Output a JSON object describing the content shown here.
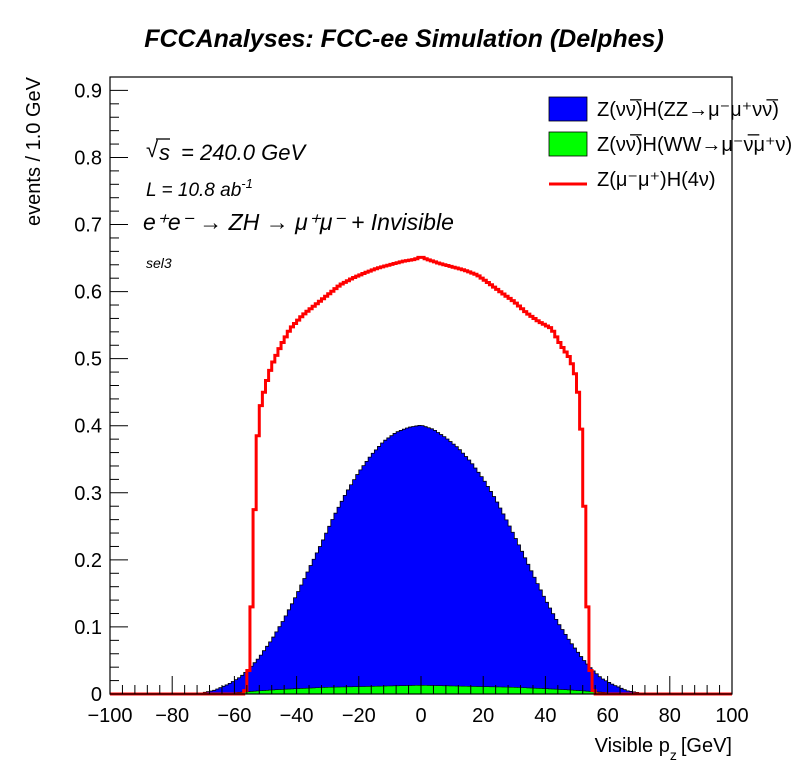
{
  "chart_data": {
    "type": "histogram",
    "title": "FCCAnalyses: FCC-ee Simulation (Delphes)",
    "xlabel": "Visible p",
    "xlabel_sub": "z",
    "xlabel_unit": "[GeV]",
    "ylabel": "events / 1.0 GeV",
    "xlim": [
      -100,
      100
    ],
    "ylim": [
      0,
      0.92
    ],
    "x_ticks": [
      "−100",
      "−80",
      "−60",
      "−40",
      "−20",
      "0",
      "20",
      "40",
      "60",
      "80",
      "100"
    ],
    "y_ticks": [
      "0",
      "0.1",
      "0.2",
      "0.3",
      "0.4",
      "0.5",
      "0.6",
      "0.7",
      "0.8",
      "0.9"
    ],
    "annotations": {
      "sqrts": "= 240.0 GeV",
      "lumi": "L = 10.8 ab",
      "lumi_sup": "-1",
      "process": "e⁺e⁻ → ZH → μ⁺μ⁻ + Invisible",
      "selection": "sel3"
    },
    "series": [
      {
        "name": "Z(νν̅)H(ZZ→μ⁻μ⁺νν̅)",
        "style": "stacked-fill",
        "color": "#0000ff",
        "points": [
          [
            -70,
            0.002
          ],
          [
            -66,
            0.006
          ],
          [
            -62,
            0.013
          ],
          [
            -58,
            0.023
          ],
          [
            -55,
            0.035
          ],
          [
            -52,
            0.05
          ],
          [
            -48,
            0.075
          ],
          [
            -44,
            0.105
          ],
          [
            -40,
            0.14
          ],
          [
            -36,
            0.178
          ],
          [
            -32,
            0.215
          ],
          [
            -28,
            0.255
          ],
          [
            -24,
            0.29
          ],
          [
            -20,
            0.32
          ],
          [
            -16,
            0.345
          ],
          [
            -12,
            0.365
          ],
          [
            -8,
            0.378
          ],
          [
            -4,
            0.385
          ],
          [
            0,
            0.388
          ],
          [
            4,
            0.382
          ],
          [
            8,
            0.37
          ],
          [
            12,
            0.355
          ],
          [
            16,
            0.335
          ],
          [
            20,
            0.31
          ],
          [
            24,
            0.28
          ],
          [
            28,
            0.245
          ],
          [
            32,
            0.208
          ],
          [
            36,
            0.17
          ],
          [
            40,
            0.133
          ],
          [
            44,
            0.1
          ],
          [
            48,
            0.072
          ],
          [
            52,
            0.048
          ],
          [
            55,
            0.033
          ],
          [
            58,
            0.021
          ],
          [
            62,
            0.012
          ],
          [
            66,
            0.005
          ],
          [
            70,
            0.002
          ]
        ]
      },
      {
        "name": "Z(νν̅)H(WW→μ⁻ν̅μ⁺ν)",
        "style": "stacked-fill",
        "color": "#00ff00",
        "points": [
          [
            -66,
            0.0005
          ],
          [
            -60,
            0.002
          ],
          [
            -54,
            0.004
          ],
          [
            -48,
            0.006
          ],
          [
            -40,
            0.008
          ],
          [
            -30,
            0.01
          ],
          [
            -20,
            0.011
          ],
          [
            -10,
            0.012
          ],
          [
            0,
            0.013
          ],
          [
            10,
            0.012
          ],
          [
            20,
            0.011
          ],
          [
            30,
            0.01
          ],
          [
            40,
            0.008
          ],
          [
            48,
            0.006
          ],
          [
            54,
            0.004
          ],
          [
            60,
            0.002
          ],
          [
            66,
            0.0005
          ]
        ]
      },
      {
        "name": "Z(μ⁻μ⁺)H(4ν)",
        "style": "line",
        "color": "#ff0000",
        "points": [
          [
            -100,
            0
          ],
          [
            -57,
            0
          ],
          [
            -56,
            0.01
          ],
          [
            -55,
            0.06
          ],
          [
            -54,
            0.2
          ],
          [
            -53,
            0.35
          ],
          [
            -52,
            0.42
          ],
          [
            -50,
            0.46
          ],
          [
            -48,
            0.49
          ],
          [
            -45,
            0.52
          ],
          [
            -42,
            0.545
          ],
          [
            -38,
            0.565
          ],
          [
            -34,
            0.58
          ],
          [
            -30,
            0.595
          ],
          [
            -26,
            0.61
          ],
          [
            -22,
            0.62
          ],
          [
            -18,
            0.628
          ],
          [
            -14,
            0.635
          ],
          [
            -10,
            0.64
          ],
          [
            -6,
            0.645
          ],
          [
            -2,
            0.648
          ],
          [
            0,
            0.652
          ],
          [
            2,
            0.648
          ],
          [
            6,
            0.642
          ],
          [
            10,
            0.637
          ],
          [
            14,
            0.632
          ],
          [
            18,
            0.625
          ],
          [
            22,
            0.612
          ],
          [
            26,
            0.598
          ],
          [
            30,
            0.585
          ],
          [
            34,
            0.568
          ],
          [
            38,
            0.555
          ],
          [
            42,
            0.545
          ],
          [
            45,
            0.52
          ],
          [
            48,
            0.5
          ],
          [
            50,
            0.47
          ],
          [
            51,
            0.43
          ],
          [
            52,
            0.36
          ],
          [
            53,
            0.2
          ],
          [
            54,
            0.06
          ],
          [
            55,
            0.01
          ],
          [
            56,
            0
          ],
          [
            100,
            0
          ]
        ]
      }
    ],
    "legend_position": "top-right"
  }
}
